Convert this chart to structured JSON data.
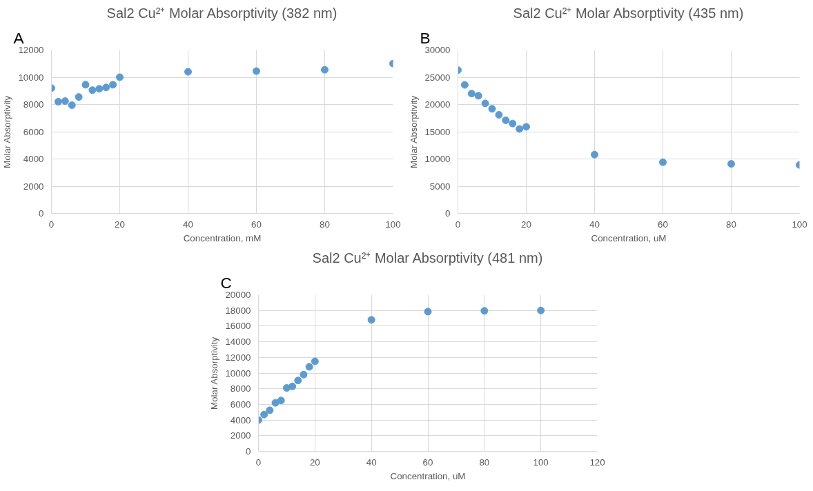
{
  "chart_data": [
    {
      "type": "scatter",
      "title": "Sal2 Cu²⁺ Molar Absorptivity (382 nm)",
      "xlabel": "Concentration, mM",
      "ylabel": "Molar Absorptivity",
      "annotations": [
        "A"
      ],
      "marker": "circle",
      "grid": true,
      "x": [
        0,
        2,
        4,
        6,
        8,
        10,
        12,
        14,
        16,
        18,
        20,
        40,
        60,
        80,
        100
      ],
      "series": [
        {
          "color": "#5b9bd5",
          "values": [
            9200,
            8200,
            8250,
            7950,
            8550,
            9450,
            9050,
            9150,
            9250,
            9450,
            10000,
            10400,
            10450,
            10550,
            11000
          ]
        }
      ],
      "xlim": [
        0,
        100
      ],
      "xticks": [
        0,
        20,
        40,
        60,
        80,
        100
      ],
      "ylim": [
        0,
        12000
      ],
      "yticks": [
        0,
        2000,
        4000,
        6000,
        8000,
        10000,
        12000
      ]
    },
    {
      "type": "scatter",
      "title": "Sal2 Cu²⁺ Molar Absorptivity (435 nm)",
      "xlabel": "Concentration, uM",
      "ylabel": "Molar Absorptivity",
      "annotations": [
        "B"
      ],
      "marker": "circle",
      "grid": true,
      "x": [
        0,
        2,
        4,
        6,
        8,
        10,
        12,
        14,
        16,
        18,
        20,
        40,
        60,
        80,
        100
      ],
      "series": [
        {
          "color": "#5b9bd5",
          "values": [
            26300,
            23600,
            22000,
            21600,
            20200,
            19200,
            18100,
            17100,
            16500,
            15500,
            15900,
            10800,
            9400,
            9100,
            8900
          ]
        }
      ],
      "xlim": [
        0,
        100
      ],
      "xticks": [
        0,
        20,
        40,
        60,
        80,
        100
      ],
      "ylim": [
        0,
        30000
      ],
      "yticks": [
        0,
        5000,
        10000,
        15000,
        20000,
        25000,
        30000
      ]
    },
    {
      "type": "scatter",
      "title": "Sal2 Cu²⁺ Molar Absorptivity (481 nm)",
      "xlabel": "Concentration, uM",
      "ylabel": "Molar Absorptivity",
      "annotations": [
        "C"
      ],
      "marker": "circle",
      "grid": true,
      "x": [
        0,
        2,
        4,
        6,
        8,
        10,
        12,
        14,
        16,
        18,
        20,
        40,
        60,
        80,
        100
      ],
      "series": [
        {
          "color": "#5b9bd5",
          "values": [
            4000,
            4700,
            5250,
            6200,
            6500,
            8100,
            8300,
            9050,
            9800,
            10800,
            11500,
            16800,
            17850,
            17950,
            18000
          ]
        }
      ],
      "xlim": [
        0,
        120
      ],
      "xticks": [
        0,
        20,
        40,
        60,
        80,
        100,
        120
      ],
      "ylim": [
        0,
        20000
      ],
      "yticks": [
        0,
        2000,
        4000,
        6000,
        8000,
        10000,
        12000,
        14000,
        16000,
        18000,
        20000
      ]
    }
  ]
}
